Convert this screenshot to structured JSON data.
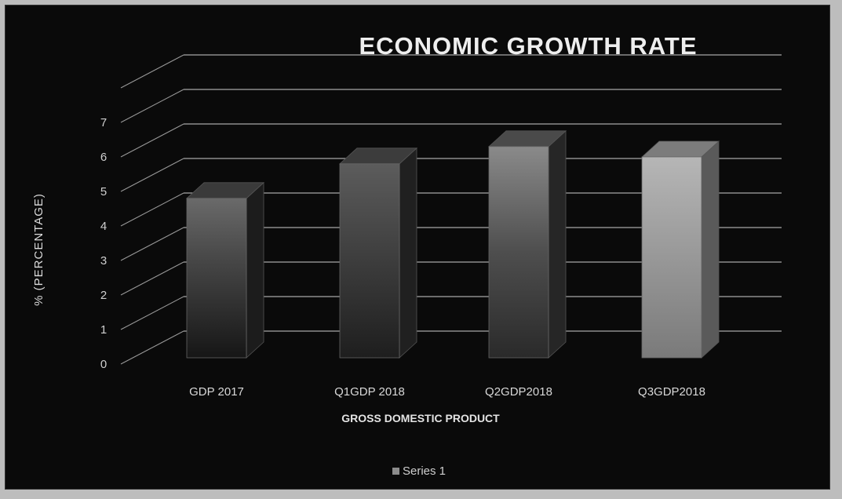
{
  "chart_data": {
    "type": "bar",
    "title": "ECONOMIC GROWTH RATE",
    "xlabel": "GROSS DOMESTIC PRODUCT",
    "ylabel": "% (PERCENTAGE)",
    "categories": [
      "GDP 2017",
      "Q1GDP 2018",
      "Q2GDP2018",
      "Q3GDP2018"
    ],
    "series": [
      {
        "name": "Series 1",
        "values": [
          4.8,
          5.8,
          6.3,
          6.0
        ]
      }
    ],
    "ylim": [
      0,
      7
    ],
    "yticks": [
      0,
      1,
      2,
      3,
      4,
      5,
      6,
      7
    ],
    "grid": true,
    "legend": "bottom",
    "style": "3d-column"
  }
}
